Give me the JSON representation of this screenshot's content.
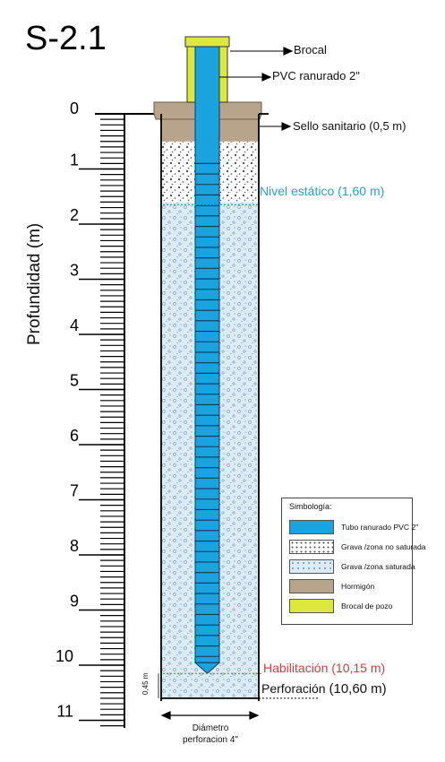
{
  "title": "S-2.1",
  "axis": {
    "label": "Profundidad (m)",
    "min": 0,
    "max": 11,
    "ticks": [
      "0",
      "1",
      "2",
      "3",
      "4",
      "5",
      "6",
      "7",
      "8",
      "9",
      "10",
      "11"
    ]
  },
  "callouts": {
    "brocal": "Brocal",
    "pvc": "PVC ranurado 2\"",
    "sello": "Sello sanitario (0,5 m)",
    "nivel": "Nivel estático (1,60 m)",
    "habilitacion": "Habilitación  (10,15 m)",
    "perforacion_label": "Perforación",
    "perforacion_value": "(10,60 m)",
    "gap": "0,45 m"
  },
  "well": {
    "seal_depth_m": 0.5,
    "static_level_m": 1.6,
    "screen_bottom_m": 10.15,
    "bore_bottom_m": 10.6,
    "gap_m": 0.45
  },
  "diametro": {
    "line1": "Diámetro",
    "line2": "perforacion 4\""
  },
  "legend": {
    "title": "Simbología:",
    "items": [
      {
        "label": "Tubo ranurado PVC 2\"",
        "swatch": "tubo",
        "color": "#1aa3df"
      },
      {
        "label": "Grava /zona no saturada",
        "swatch": "gna",
        "color": "#ffffff"
      },
      {
        "label": "Grava /zona saturada",
        "swatch": "gs",
        "color": "#dcecf6"
      },
      {
        "label": "Hormigón",
        "swatch": "horm",
        "color": "#b8a48a"
      },
      {
        "label": "Brocal de pozo",
        "swatch": "brocal",
        "color": "#dde83a"
      }
    ]
  },
  "colors": {
    "pipe": "#1aa3df",
    "pipe_dark": "#0a3a5c",
    "concrete": "#b8a48a",
    "brocal": "#dde83a",
    "saturated": "#dcecf6",
    "nivel": "#2a9fd0",
    "habilitacion": "#d23b3b"
  }
}
